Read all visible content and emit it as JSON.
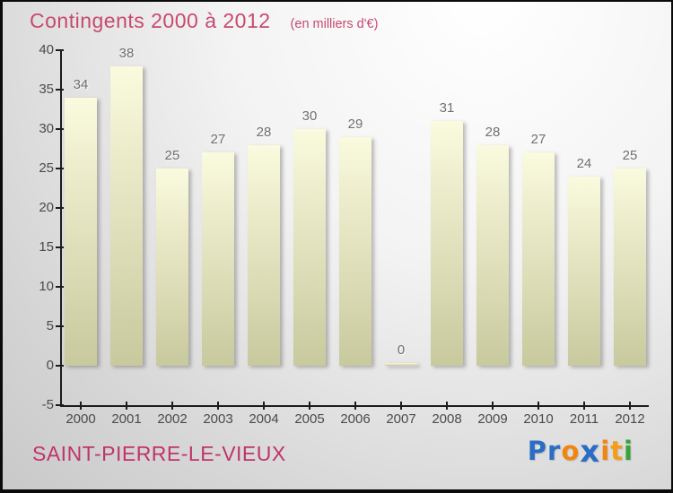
{
  "title": "Contingents 2000 à 2012",
  "subtitle": "(en milliers d'€)",
  "footer": {
    "place": "SAINT-PIERRE-LE-VIEUX",
    "logo": {
      "name": "Proxiti",
      "letters": [
        {
          "ch": "P",
          "color": "#2b6cc4"
        },
        {
          "ch": "r",
          "color": "#2b6cc4"
        },
        {
          "ch": "o",
          "color": "#f0860f"
        },
        {
          "ch": "x",
          "color": "#2b6cc4",
          "big": true
        },
        {
          "ch": "i",
          "color": "#f0860f"
        },
        {
          "ch": "t",
          "color": "#f59d1b"
        },
        {
          "ch": "i",
          "color": "#3aa23a"
        }
      ]
    }
  },
  "colors": {
    "title_pink": "#c8496f",
    "place_pink": "#c1336b",
    "axis_color": "#1c1c1c",
    "tick_label_color": "#4a4a4a",
    "value_label_color": "#6f6f6f",
    "bar_top": "#fafade",
    "bar_bottom": "#c9c99e"
  },
  "chart_data": {
    "type": "bar",
    "title": "Contingents 2000 à 2012",
    "subtitle": "(en milliers d'€)",
    "categories": [
      "2000",
      "2001",
      "2002",
      "2003",
      "2004",
      "2005",
      "2006",
      "2007",
      "2008",
      "2009",
      "2010",
      "2011",
      "2012"
    ],
    "values": [
      34,
      38,
      25,
      27,
      28,
      30,
      29,
      0,
      31,
      28,
      27,
      24,
      25
    ],
    "xlabel": "",
    "ylabel": "",
    "ylim": [
      -5,
      40
    ],
    "ytick_step": 5,
    "grid": false,
    "legend": false,
    "bar_labels_shown": true
  }
}
